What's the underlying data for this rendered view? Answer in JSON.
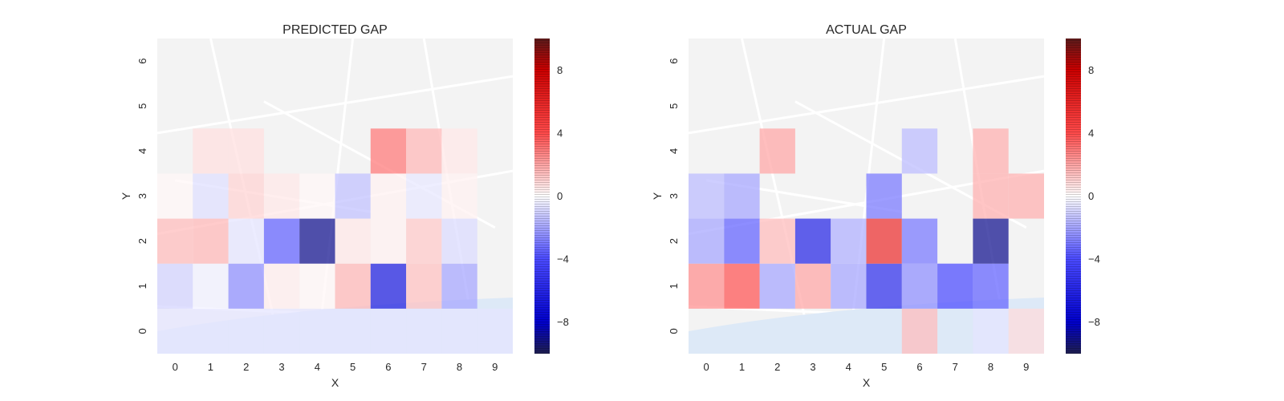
{
  "chart_data": [
    {
      "type": "heatmap",
      "title": "PREDICTED GAP",
      "xlabel": "X",
      "ylabel": "Y",
      "x_ticks": [
        "0",
        "1",
        "2",
        "3",
        "4",
        "5",
        "6",
        "7",
        "8",
        "9"
      ],
      "y_ticks": [
        "0",
        "1",
        "2",
        "3",
        "4",
        "5",
        "6"
      ],
      "colormap": "seismic",
      "vlim": [
        -10,
        10
      ],
      "colorbar_ticks": [
        "8",
        "4",
        "0",
        "−4",
        "−8"
      ],
      "colorbar_tick_values": [
        8,
        4,
        0,
        -4,
        -8
      ],
      "cells": [
        {
          "x": 0,
          "y": 0,
          "value": -0.6
        },
        {
          "x": 1,
          "y": 0,
          "value": -0.6
        },
        {
          "x": 2,
          "y": 0,
          "value": -0.6
        },
        {
          "x": 3,
          "y": 0,
          "value": -0.6
        },
        {
          "x": 4,
          "y": 0,
          "value": -0.6
        },
        {
          "x": 5,
          "y": 0,
          "value": -0.6
        },
        {
          "x": 6,
          "y": 0,
          "value": -0.6
        },
        {
          "x": 7,
          "y": 0,
          "value": -0.6
        },
        {
          "x": 8,
          "y": 0,
          "value": -0.6
        },
        {
          "x": 9,
          "y": 0,
          "value": -0.6
        },
        {
          "x": 0,
          "y": 1,
          "value": -1.0
        },
        {
          "x": 1,
          "y": 1,
          "value": -0.3
        },
        {
          "x": 2,
          "y": 1,
          "value": -2.5
        },
        {
          "x": 3,
          "y": 1,
          "value": 0.4
        },
        {
          "x": 4,
          "y": 1,
          "value": 0.2
        },
        {
          "x": 5,
          "y": 1,
          "value": 1.6
        },
        {
          "x": 6,
          "y": 1,
          "value": -6.5
        },
        {
          "x": 7,
          "y": 1,
          "value": 1.4
        },
        {
          "x": 8,
          "y": 1,
          "value": -2.0
        },
        {
          "x": 0,
          "y": 2,
          "value": 1.5
        },
        {
          "x": 1,
          "y": 2,
          "value": 1.6
        },
        {
          "x": 2,
          "y": 2,
          "value": -0.6
        },
        {
          "x": 3,
          "y": 2,
          "value": -3.5
        },
        {
          "x": 4,
          "y": 2,
          "value": -9.0
        },
        {
          "x": 5,
          "y": 2,
          "value": 0.5
        },
        {
          "x": 6,
          "y": 2,
          "value": 0.3
        },
        {
          "x": 7,
          "y": 2,
          "value": 1.2
        },
        {
          "x": 8,
          "y": 2,
          "value": -0.8
        },
        {
          "x": 0,
          "y": 3,
          "value": 0.2
        },
        {
          "x": 1,
          "y": 3,
          "value": -0.7
        },
        {
          "x": 2,
          "y": 3,
          "value": 1.0
        },
        {
          "x": 3,
          "y": 3,
          "value": 0.5
        },
        {
          "x": 4,
          "y": 3,
          "value": 0.2
        },
        {
          "x": 5,
          "y": 3,
          "value": -1.4
        },
        {
          "x": 6,
          "y": 3,
          "value": 0.3
        },
        {
          "x": 7,
          "y": 3,
          "value": -0.5
        },
        {
          "x": 8,
          "y": 3,
          "value": 0.3
        },
        {
          "x": 1,
          "y": 4,
          "value": 0.7
        },
        {
          "x": 2,
          "y": 4,
          "value": 0.7
        },
        {
          "x": 6,
          "y": 4,
          "value": 3.0
        },
        {
          "x": 7,
          "y": 4,
          "value": 1.6
        },
        {
          "x": 8,
          "y": 4,
          "value": 0.5
        }
      ]
    },
    {
      "type": "heatmap",
      "title": "ACTUAL GAP",
      "xlabel": "X",
      "ylabel": "Y",
      "x_ticks": [
        "0",
        "1",
        "2",
        "3",
        "4",
        "5",
        "6",
        "7",
        "8",
        "9"
      ],
      "y_ticks": [
        "0",
        "1",
        "2",
        "3",
        "4",
        "5",
        "6"
      ],
      "colormap": "seismic",
      "vlim": [
        -10,
        10
      ],
      "colorbar_ticks": [
        "8",
        "4",
        "0",
        "−4",
        "−8"
      ],
      "colorbar_tick_values": [
        8,
        4,
        0,
        -4,
        -8
      ],
      "cells": [
        {
          "x": 6,
          "y": 0,
          "value": 1.5
        },
        {
          "x": 8,
          "y": 0,
          "value": -0.6
        },
        {
          "x": 9,
          "y": 0,
          "value": 0.8
        },
        {
          "x": 0,
          "y": 1,
          "value": 2.5
        },
        {
          "x": 1,
          "y": 1,
          "value": 3.8
        },
        {
          "x": 2,
          "y": 1,
          "value": -2.0
        },
        {
          "x": 3,
          "y": 1,
          "value": 2.0
        },
        {
          "x": 4,
          "y": 1,
          "value": -2.0
        },
        {
          "x": 5,
          "y": 1,
          "value": -5.5
        },
        {
          "x": 6,
          "y": 1,
          "value": -2.5
        },
        {
          "x": 7,
          "y": 1,
          "value": -4.0
        },
        {
          "x": 8,
          "y": 1,
          "value": -3.5
        },
        {
          "x": 0,
          "y": 2,
          "value": -2.0
        },
        {
          "x": 1,
          "y": 2,
          "value": -3.5
        },
        {
          "x": 2,
          "y": 2,
          "value": 1.5
        },
        {
          "x": 3,
          "y": 2,
          "value": -6.0
        },
        {
          "x": 4,
          "y": 2,
          "value": -1.8
        },
        {
          "x": 5,
          "y": 2,
          "value": 5.5
        },
        {
          "x": 6,
          "y": 2,
          "value": -3.0
        },
        {
          "x": 8,
          "y": 2,
          "value": -9.0
        },
        {
          "x": 0,
          "y": 3,
          "value": -1.5
        },
        {
          "x": 1,
          "y": 3,
          "value": -2.0
        },
        {
          "x": 5,
          "y": 3,
          "value": -3.0
        },
        {
          "x": 8,
          "y": 3,
          "value": 1.8
        },
        {
          "x": 9,
          "y": 3,
          "value": 1.8
        },
        {
          "x": 2,
          "y": 4,
          "value": 2.0
        },
        {
          "x": 6,
          "y": 4,
          "value": -1.5
        },
        {
          "x": 8,
          "y": 4,
          "value": 1.8
        }
      ]
    }
  ]
}
